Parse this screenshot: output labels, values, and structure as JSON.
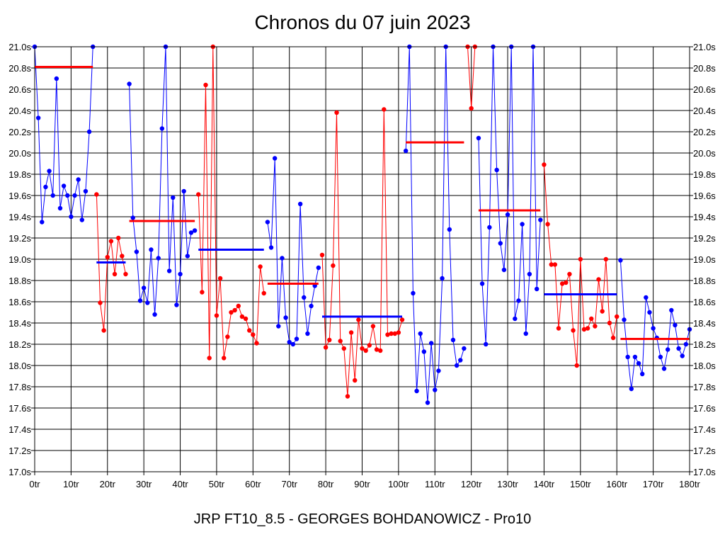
{
  "chart_data": {
    "type": "line",
    "title": "Chronos du 07 juin 2023",
    "subtitle": "JRP FT10_8.5 - GEORGES BOHDANOWICZ - Pro10",
    "xlabel": "",
    "ylabel": "",
    "xlim": [
      0,
      180
    ],
    "ylim": [
      17.0,
      21.0
    ],
    "x_ticks": [
      "0tr",
      "10tr",
      "20tr",
      "30tr",
      "40tr",
      "50tr",
      "60tr",
      "70tr",
      "80tr",
      "90tr",
      "100tr",
      "110tr",
      "120tr",
      "130tr",
      "140tr",
      "150tr",
      "160tr",
      "170tr",
      "180tr"
    ],
    "y_ticks": [
      "21.0s",
      "20.8s",
      "20.6s",
      "20.4s",
      "20.2s",
      "20.0s",
      "19.8s",
      "19.6s",
      "19.4s",
      "19.2s",
      "19.0s",
      "18.8s",
      "18.6s",
      "18.4s",
      "18.2s",
      "18.0s",
      "17.8s",
      "17.6s",
      "17.4s",
      "17.2s",
      "17.0s"
    ],
    "y_ticks_right": [
      "21.0s",
      "20.8s",
      "20.6s",
      "20.4s",
      "20.2s",
      "20.0s",
      "19.8s",
      "19.6s",
      "19.4s",
      "19.2s",
      "19.0s",
      "18.8s",
      "18.6s",
      "18.4s",
      "18.2s",
      "18.0s",
      "17.8s",
      "17.6s",
      "17.4s",
      "17.2s",
      "17.0s"
    ],
    "grid": true,
    "legend": "none",
    "colors": {
      "blue": "#0000ff",
      "red": "#ff0000",
      "grid": "#000000"
    },
    "series": [
      {
        "color": "blue",
        "x": [
          0,
          1,
          2,
          3,
          4,
          5,
          6,
          7,
          8,
          9,
          10,
          11,
          12,
          13,
          14,
          15,
          16
        ],
        "y": [
          21.0,
          20.33,
          19.35,
          19.68,
          19.83,
          19.6,
          20.7,
          19.48,
          19.69,
          19.6,
          19.4,
          19.6,
          19.75,
          19.37,
          19.64,
          20.2,
          21.0
        ]
      },
      {
        "color": "red",
        "x": [
          17,
          18,
          19,
          20,
          21,
          22,
          23,
          24,
          25
        ],
        "y": [
          19.61,
          18.59,
          18.33,
          19.02,
          19.17,
          18.86,
          19.2,
          19.03,
          18.86
        ]
      },
      {
        "color": "blue",
        "x": [
          26,
          27,
          28,
          29,
          30,
          31,
          32,
          33,
          34,
          35,
          36,
          37,
          38,
          39,
          40,
          41,
          42,
          43,
          44
        ],
        "y": [
          20.65,
          19.39,
          19.07,
          18.61,
          18.73,
          18.59,
          19.09,
          18.48,
          19.01,
          20.23,
          21.0,
          18.89,
          19.58,
          18.57,
          18.86,
          19.64,
          19.03,
          19.25,
          19.27
        ]
      },
      {
        "color": "red",
        "x": [
          45,
          46,
          47,
          48,
          49,
          50,
          51,
          52,
          53,
          54,
          55,
          56,
          57,
          58,
          59,
          60,
          61,
          62,
          63
        ],
        "y": [
          19.61,
          18.69,
          20.64,
          18.07,
          21.0,
          18.47,
          18.82,
          18.07,
          18.27,
          18.5,
          18.52,
          18.56,
          18.46,
          18.44,
          18.33,
          18.29,
          18.21,
          18.93,
          18.68
        ]
      },
      {
        "color": "blue",
        "x": [
          64,
          65,
          66,
          67,
          68,
          69,
          70,
          71,
          72,
          73,
          74,
          75,
          76,
          77,
          78
        ],
        "y": [
          19.35,
          19.11,
          19.95,
          18.37,
          19.01,
          18.45,
          18.22,
          18.2,
          18.25,
          19.52,
          18.64,
          18.3,
          18.56,
          18.75,
          18.92
        ]
      },
      {
        "color": "red",
        "x": [
          79,
          80,
          81,
          82,
          83,
          84,
          85,
          86,
          87,
          88,
          89,
          90,
          91,
          92,
          93,
          94,
          95,
          96,
          97,
          98,
          99,
          100,
          101
        ],
        "y": [
          19.04,
          18.17,
          18.24,
          18.94,
          20.38,
          18.23,
          18.16,
          17.71,
          18.31,
          17.86,
          18.43,
          18.16,
          18.14,
          18.19,
          18.37,
          18.15,
          18.14,
          20.41,
          18.29,
          18.3,
          18.3,
          18.31,
          18.43
        ]
      },
      {
        "color": "blue",
        "x": [
          102,
          103,
          104,
          105,
          106,
          107,
          108,
          109,
          110,
          111,
          112,
          113,
          114,
          115,
          116,
          117,
          118
        ],
        "y": [
          20.02,
          21.0,
          18.68,
          17.76,
          18.3,
          18.13,
          17.65,
          18.21,
          17.77,
          17.95,
          18.82,
          21.0,
          19.28,
          18.24,
          18.0,
          18.05,
          18.16
        ]
      },
      {
        "color": "red",
        "x": [
          119,
          120,
          121
        ],
        "y": [
          21.0,
          20.42,
          21.0
        ]
      },
      {
        "color": "blue",
        "x": [
          122,
          123,
          124,
          125,
          126,
          127,
          128,
          129,
          130,
          131,
          132,
          133,
          134,
          135,
          136,
          137,
          138,
          139
        ],
        "y": [
          20.14,
          18.77,
          18.2,
          19.3,
          21.0,
          19.84,
          19.15,
          18.9,
          19.42,
          21.0,
          18.44,
          18.61,
          19.33,
          18.3,
          18.86,
          21.0,
          18.72,
          19.37
        ]
      },
      {
        "color": "red",
        "x": [
          140,
          141,
          142,
          143,
          144,
          145,
          146,
          147,
          148,
          149,
          150,
          151,
          152,
          153,
          154,
          155,
          156,
          157,
          158,
          159,
          160
        ],
        "y": [
          19.89,
          19.33,
          18.95,
          18.95,
          18.35,
          18.77,
          18.78,
          18.86,
          18.33,
          18.0,
          19.0,
          18.34,
          18.35,
          18.44,
          18.37,
          18.81,
          18.51,
          19.0,
          18.4,
          18.26,
          18.46
        ]
      },
      {
        "color": "blue",
        "x": [
          161,
          162,
          163,
          164,
          165,
          166,
          167,
          168,
          169,
          170,
          171,
          172,
          173,
          174,
          175,
          176,
          177,
          178,
          179,
          180
        ],
        "y": [
          18.99,
          18.43,
          18.08,
          17.78,
          18.08,
          18.02,
          17.92,
          18.64,
          18.5,
          18.35,
          18.26,
          18.08,
          17.97,
          18.15,
          18.52,
          18.38,
          18.16,
          18.09,
          18.2,
          18.34
        ]
      }
    ],
    "averages": [
      {
        "color": "red",
        "x": [
          0,
          16
        ],
        "y": 20.81
      },
      {
        "color": "blue",
        "x": [
          17,
          25
        ],
        "y": 18.97
      },
      {
        "color": "red",
        "x": [
          26,
          44
        ],
        "y": 19.36
      },
      {
        "color": "blue",
        "x": [
          45,
          63
        ],
        "y": 19.09
      },
      {
        "color": "red",
        "x": [
          64,
          78
        ],
        "y": 18.77
      },
      {
        "color": "blue",
        "x": [
          79,
          101
        ],
        "y": 18.46
      },
      {
        "color": "red",
        "x": [
          102,
          118
        ],
        "y": 20.1
      },
      {
        "color": "red",
        "x": [
          122,
          139
        ],
        "y": 19.46
      },
      {
        "color": "blue",
        "x": [
          140,
          160
        ],
        "y": 18.67
      },
      {
        "color": "red",
        "x": [
          161,
          180
        ],
        "y": 18.25
      }
    ]
  }
}
